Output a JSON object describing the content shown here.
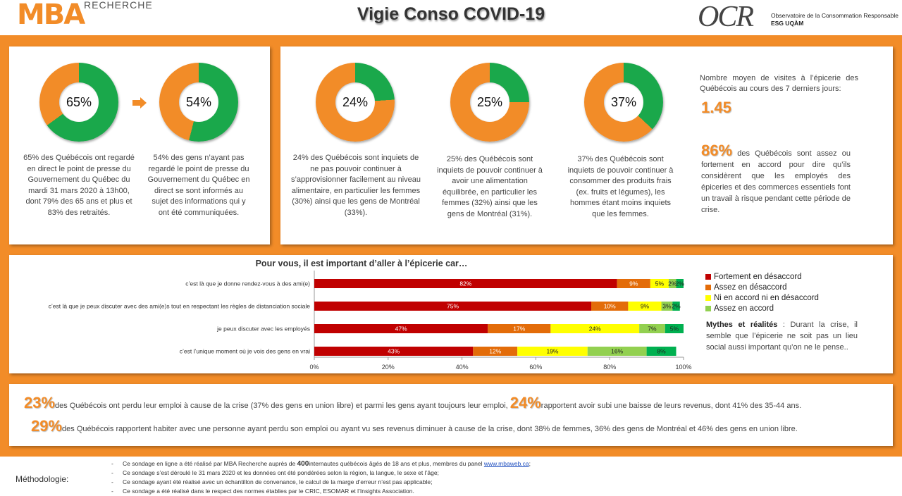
{
  "header": {
    "logo_mba": "MBA",
    "logo_mba_sub": "RECHERCHE",
    "title": "Vigie Conso COVID-19",
    "logo_ocr": "OCR",
    "ocr_line1": "Observatoire de la Consommation Responsable",
    "ocr_line2": "ESG UQÀM"
  },
  "colors": {
    "orange": "#f28c28",
    "green": "#1aa84b",
    "dark_red": "#c00000",
    "dark_orange": "#e36c09",
    "yellow": "#ffff00",
    "light_green": "#92d050",
    "medium_green": "#00b050"
  },
  "donuts": [
    {
      "label": "65%",
      "value": 65,
      "caption": "65% des Québécois ont regardé en direct le point de presse du Gouvernement du Québec du mardi 31 mars 2020 à 13h00, dont 79% des 65 ans et plus et 83% des retraités."
    },
    {
      "label": "54%",
      "value": 54,
      "caption": "54% des gens n’ayant pas regardé le point de presse du Gouvernement du Québec en direct se sont informés au sujet des informations qui y ont été communiquées."
    },
    {
      "label": "24%",
      "value": 24,
      "caption": "24% des Québécois sont inquiets de ne pas pouvoir continuer à s’approvisionner facilement au niveau alimentaire, en particulier les femmes (30%) ainsi que les gens de Montréal (33%)."
    },
    {
      "label": "25%",
      "value": 25,
      "caption": "25% des Québécois sont inquiets de pouvoir continuer à avoir une alimentation équilibrée, en particulier les femmes (32%) ainsi que les gens de Montréal (31%)."
    },
    {
      "label": "37%",
      "value": 37,
      "caption": "37% des Québécois sont inquiets de pouvoir continuer à consommer des produits frais (ex. fruits et légumes), les hommes étant moins inquiets que les femmes."
    }
  ],
  "avg_visits": {
    "label": "Nombre moyen de visites à l’épicerie des Québécois au cours des 7 derniers jours:",
    "value": "1.45"
  },
  "stat86": {
    "pct": "86%",
    "text": " des Québécois sont assez ou fortement en accord pour dire qu’ils considèrent que les employés des épiceries et des commerces essentiels font un travail à risque pendant cette période de crise."
  },
  "chart_data": {
    "type": "bar",
    "orientation": "horizontal",
    "stacked": true,
    "title": "Pour vous, il est important d’aller à l’épicerie car…",
    "categories": [
      "c’est là que je donne rendez-vous à des ami(e)",
      "c’est là que je peux discuter avec des ami(e)s tout en respectant les règles de distanciation sociale",
      "je peux discuter avec les employés",
      "c’est l’unique moment où je vois des gens en vrai"
    ],
    "series": [
      {
        "name": "Fortement en désaccord",
        "color": "#c00000",
        "values": [
          82,
          75,
          47,
          43
        ],
        "labels": [
          "82%",
          "75%",
          "47%",
          "43%"
        ]
      },
      {
        "name": "Assez en désaccord",
        "color": "#e36c09",
        "values": [
          9,
          10,
          17,
          12
        ],
        "labels": [
          "9%",
          "10%",
          "17%",
          "12%"
        ]
      },
      {
        "name": "Ni en accord ni en désaccord",
        "color": "#ffff00",
        "values": [
          5,
          9,
          24,
          19
        ],
        "labels": [
          "5%",
          "9%",
          "24%",
          "19%"
        ]
      },
      {
        "name": "Assez en accord",
        "color": "#92d050",
        "values": [
          2,
          3,
          7,
          16
        ],
        "labels": [
          "2%",
          "3%",
          "7%",
          "16%"
        ]
      },
      {
        "name": "",
        "color": "#00b050",
        "values": [
          2,
          2,
          5,
          8
        ],
        "labels": [
          "2%",
          "2%",
          "5%",
          "8%"
        ]
      }
    ],
    "xlim": [
      0,
      100
    ],
    "xticks": [
      "0%",
      "20%",
      "40%",
      "60%",
      "80%",
      "100%"
    ],
    "legend_position": "right"
  },
  "myths": {
    "title": "Mythes et réalités",
    "text": " :  Durant la crise, il semble que l’épicerie ne soit pas un lieu social aussi important qu’on ne le pense.."
  },
  "bottom": {
    "pct1": "23%",
    "text1": "des Québécois ont perdu leur emploi à cause de la crise (37% des gens en union libre) et parmi les gens ayant toujours leur emploi,",
    "pct2": "24%",
    "text2": "rapportent avoir subi une baisse de leurs revenus, dont 41% des 35-44 ans.",
    "pct3": "29%",
    "text3": "des Québécois rapportent habiter avec une personne ayant perdu son emploi ou ayant vu ses revenus diminuer à cause de la crise, dont 38% de femmes, 36% des gens de Montréal et 46% des gens en union libre."
  },
  "methodology": {
    "label": "Méthodologie:",
    "items": [
      {
        "before": "Ce sondage en ligne a été réalisé par MBA Recherche auprès de ",
        "bold": "400",
        "after": "internautes québécois âgés de 18 ans et plus, membres du panel ",
        "link": "www.mbaweb.ca",
        "end": ";"
      },
      {
        "before": "Ce sondage s’est déroulé le 31 mars 2020 et les données ont été pondérées selon la région, la langue, le sexe et l’âge;"
      },
      {
        "before": "Ce sondage ayant été réalisé avec un échantillon de convenance, le calcul de la marge d’erreur n’est pas applicable;"
      },
      {
        "before": "Ce sondage a été réalisé dans le respect des normes établies par le CRIC, ESOMAR et l’Insights Association."
      }
    ]
  }
}
